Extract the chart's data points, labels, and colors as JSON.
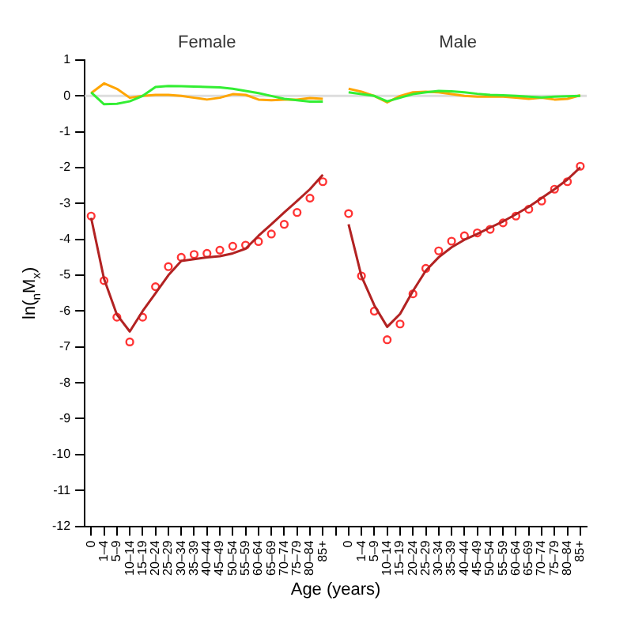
{
  "chart_data": {
    "type": "line",
    "annotations": [
      "Female",
      "Male"
    ],
    "xlabel": "Age (years)",
    "ylabel": "ln($_{n}$M$_{x}$)",
    "categories": [
      "0",
      "1–4",
      "5–9",
      "10–14",
      "15–19",
      "20–24",
      "25–29",
      "30–34",
      "35–39",
      "40–44",
      "45–49",
      "50–54",
      "55–59",
      "60–64",
      "65–69",
      "70–74",
      "75–79",
      "80–84",
      "85+",
      null,
      "0",
      "1–4",
      "5–9",
      "10–14",
      "15–19",
      "20–24",
      "25–29",
      "30–34",
      "35–39",
      "40–44",
      "45–49",
      "50–54",
      "55–59",
      "60–64",
      "65–69",
      "70–74",
      "75–79",
      "80–84",
      "85+"
    ],
    "ylim": [
      -12,
      1
    ],
    "yticks": [
      -12,
      -11,
      -10,
      -9,
      -8,
      -7,
      -6,
      -5,
      -4,
      -3,
      -2,
      -1,
      0,
      1
    ],
    "grid": false,
    "legend": false,
    "ref_lines": [
      {
        "axis": "y",
        "value": 0,
        "color": "#dddddd"
      }
    ],
    "series": [
      {
        "type": "line",
        "color": "#33ee33",
        "values": [
          0.1,
          -0.23,
          -0.22,
          -0.15,
          0.0,
          0.25,
          0.28,
          0.27,
          0.26,
          0.25,
          0.24,
          0.2,
          0.14,
          0.08,
          0.0,
          -0.08,
          -0.12,
          -0.16,
          -0.16,
          null,
          0.1,
          0.05,
          0.0,
          -0.15,
          -0.05,
          0.05,
          0.1,
          0.14,
          0.13,
          0.1,
          0.06,
          0.03,
          0.02,
          0.0,
          -0.02,
          -0.04,
          -0.02,
          -0.01,
          0.0
        ]
      },
      {
        "type": "line",
        "color": "#ffa500",
        "values": [
          0.08,
          0.35,
          0.2,
          -0.05,
          0.0,
          0.03,
          0.03,
          0.0,
          -0.05,
          -0.1,
          -0.05,
          0.05,
          0.03,
          -0.1,
          -0.12,
          -0.1,
          -0.1,
          -0.06,
          -0.08,
          null,
          0.2,
          0.12,
          0.0,
          -0.18,
          0.0,
          0.1,
          0.12,
          0.1,
          0.05,
          0.0,
          -0.02,
          -0.02,
          -0.02,
          -0.05,
          -0.08,
          -0.05,
          -0.1,
          -0.08,
          0.02
        ]
      },
      {
        "type": "line",
        "color": "#b22222",
        "values": [
          -3.4,
          -5.1,
          -6.1,
          -6.57,
          -6.0,
          -5.5,
          -5.0,
          -4.6,
          -4.55,
          -4.5,
          -4.47,
          -4.39,
          -4.26,
          -3.9,
          -3.58,
          -3.25,
          -2.93,
          -2.6,
          -2.2,
          null,
          -3.58,
          -5.03,
          -5.84,
          -6.44,
          -6.08,
          -5.44,
          -4.87,
          -4.5,
          -4.22,
          -4.01,
          -3.85,
          -3.67,
          -3.5,
          -3.3,
          -3.09,
          -2.85,
          -2.6,
          -2.33,
          -1.99
        ]
      },
      {
        "type": "scatter",
        "marker": "circle",
        "color": "#ff3333",
        "values": [
          -3.35,
          -5.15,
          -6.17,
          -6.86,
          -6.17,
          -5.32,
          -4.76,
          -4.5,
          -4.42,
          -4.39,
          -4.3,
          -4.19,
          -4.16,
          -4.06,
          -3.85,
          -3.58,
          -3.25,
          -2.85,
          -2.39,
          null,
          -3.28,
          -5.02,
          -6.0,
          -6.8,
          -6.36,
          -5.52,
          -4.81,
          -4.32,
          -4.05,
          -3.9,
          -3.82,
          -3.72,
          -3.54,
          -3.35,
          -3.16,
          -2.93,
          -2.6,
          -2.39,
          -1.96
        ]
      }
    ]
  }
}
